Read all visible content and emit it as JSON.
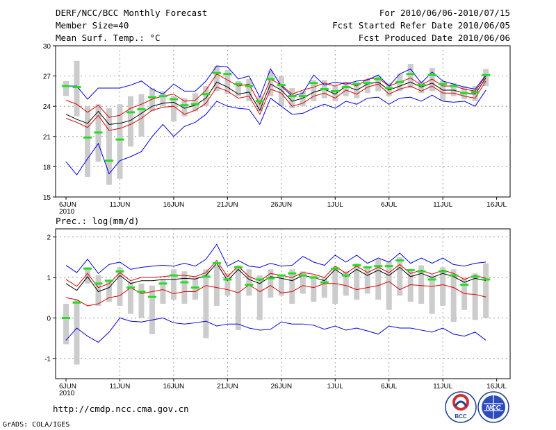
{
  "header": {
    "title": "DERF/NCC/BCC Monthly Forecast",
    "member_size": "Member Size=40",
    "variable": "Mean Surf. Temp.: °C",
    "period": "For 2010/06/06-2010/07/15",
    "refer_date": "Fcst Started Refer Date 2010/06/05",
    "produced_date": "Fcst Produced Date 2010/06/06"
  },
  "footer": {
    "url": "http://cmdp.ncc.cma.gov.cn",
    "credit": "GrADS: COLA/IGES",
    "logo_bcc": "BCC",
    "logo_ncc": "NCC"
  },
  "colors": {
    "box": "#cccccc",
    "obs": "#22dd22",
    "mean": "#000000",
    "spread": "#dd0000",
    "range": "#0000dd",
    "grid": "#888888"
  },
  "chart_data": [
    {
      "type": "line",
      "title": "Mean Surf. Temp.: °C",
      "x_tick_labels": [
        "6JUN\n2010",
        "11JUN",
        "16JUN",
        "21JUN",
        "26JUN",
        "1JUL",
        "6JUL",
        "11JUL",
        "16JUL"
      ],
      "x_tick_days": [
        0,
        5,
        10,
        15,
        20,
        25,
        30,
        35,
        40
      ],
      "ylim": [
        15,
        30
      ],
      "yticks": [
        15,
        18,
        21,
        24,
        27,
        30
      ],
      "grid": true,
      "days": [
        0,
        1,
        2,
        3,
        4,
        5,
        6,
        7,
        8,
        9,
        10,
        11,
        12,
        13,
        14,
        15,
        16,
        17,
        18,
        19,
        20,
        21,
        22,
        23,
        24,
        25,
        26,
        27,
        28,
        29,
        30,
        31,
        32,
        33,
        34,
        35,
        36,
        37,
        38,
        39
      ],
      "series": [
        {
          "name": "max",
          "values": [
            18.5,
            17.2,
            18.8,
            20.3,
            17.3,
            18.6,
            19.0,
            19.5,
            21.0,
            22.2,
            21.0,
            22.0,
            22.4,
            23.2,
            24.5,
            24.0,
            23.8,
            23.7,
            22.2,
            24.8,
            24.0,
            23.2,
            23.3,
            23.8,
            24.2,
            23.8,
            24.5,
            24.2,
            24.8,
            24.9,
            24.2,
            24.8,
            24.9,
            24.5,
            25.1,
            24.5,
            24.4,
            24.5,
            24.0,
            25.6
          ]
        },
        {
          "name": "spread_low",
          "values": [
            22.8,
            22.4,
            21.9,
            23.1,
            21.6,
            21.8,
            22.2,
            22.8,
            23.6,
            23.9,
            24.0,
            23.2,
            23.6,
            24.3,
            25.9,
            25.5,
            24.8,
            25.0,
            23.2,
            25.7,
            25.3,
            24.0,
            24.3,
            25.0,
            25.3,
            24.8,
            25.6,
            25.2,
            25.9,
            26.2,
            25.2,
            25.7,
            26.0,
            25.5,
            26.0,
            25.3,
            25.3,
            25.0,
            24.8,
            26.5
          ]
        },
        {
          "name": "mean",
          "values": [
            23.2,
            22.7,
            22.3,
            23.5,
            22.2,
            22.3,
            22.6,
            23.3,
            24.0,
            24.3,
            24.4,
            23.8,
            24.1,
            24.8,
            26.4,
            25.9,
            25.2,
            25.4,
            23.6,
            26.2,
            25.6,
            24.5,
            24.8,
            25.4,
            25.7,
            25.2,
            26.0,
            25.6,
            26.2,
            26.4,
            25.6,
            26.0,
            26.4,
            25.9,
            26.3,
            25.6,
            25.6,
            25.3,
            25.2,
            26.8
          ]
        },
        {
          "name": "spread_high",
          "values": [
            24.6,
            24.2,
            23.4,
            24.1,
            22.9,
            23.1,
            23.8,
            24.2,
            24.7,
            25.0,
            25.2,
            24.5,
            24.6,
            25.6,
            27.2,
            26.6,
            26.0,
            26.2,
            24.2,
            26.7,
            26.1,
            25.2,
            25.6,
            25.9,
            26.3,
            26.0,
            26.4,
            26.0,
            26.7,
            26.8,
            26.0,
            26.4,
            26.8,
            26.1,
            26.7,
            26.0,
            26.0,
            25.7,
            25.5,
            27.0
          ]
        },
        {
          "name": "min",
          "values": [
            26.0,
            26.0,
            24.7,
            25.8,
            25.8,
            25.8,
            26.1,
            26.5,
            25.7,
            25.2,
            26.2,
            25.5,
            25.5,
            26.5,
            28.0,
            27.9,
            26.7,
            27.0,
            24.9,
            27.7,
            26.0,
            25.0,
            25.3,
            27.1,
            26.1,
            26.4,
            26.2,
            26.5,
            26.6,
            27.1,
            26.0,
            27.2,
            27.7,
            26.3,
            27.4,
            26.5,
            26.2,
            25.9,
            25.7,
            27.1
          ]
        }
      ],
      "boxes": [
        {
          "low": 25.0,
          "high": 26.5
        },
        {
          "low": 23.0,
          "high": 28.5
        },
        {
          "low": 17.0,
          "high": 24.0
        },
        {
          "low": 18.5,
          "high": 24.2
        },
        {
          "low": 16.2,
          "high": 23.8
        },
        {
          "low": 16.8,
          "high": 24.2
        },
        {
          "low": 20.0,
          "high": 25.0
        },
        {
          "low": 21.0,
          "high": 25.2
        },
        {
          "low": 23.5,
          "high": 25.8
        },
        {
          "low": 24.0,
          "high": 25.5
        },
        {
          "low": 22.5,
          "high": 25.0
        },
        {
          "low": 23.0,
          "high": 24.8
        },
        {
          "low": 23.5,
          "high": 25.3
        },
        {
          "low": 24.0,
          "high": 26.0
        },
        {
          "low": 25.5,
          "high": 28.0
        },
        {
          "low": 25.2,
          "high": 27.6
        },
        {
          "low": 25.0,
          "high": 26.5
        },
        {
          "low": 24.5,
          "high": 26.7
        },
        {
          "low": 23.5,
          "high": 25.0
        },
        {
          "low": 25.0,
          "high": 27.5
        },
        {
          "low": 24.0,
          "high": 27.0
        },
        {
          "low": 23.8,
          "high": 25.8
        },
        {
          "low": 24.0,
          "high": 25.5
        },
        {
          "low": 24.5,
          "high": 26.6
        },
        {
          "low": 24.8,
          "high": 26.6
        },
        {
          "low": 24.5,
          "high": 26.0
        },
        {
          "low": 25.0,
          "high": 26.3
        },
        {
          "low": 24.8,
          "high": 26.4
        },
        {
          "low": 25.3,
          "high": 26.7
        },
        {
          "low": 25.5,
          "high": 27.0
        },
        {
          "low": 25.0,
          "high": 26.3
        },
        {
          "low": 25.5,
          "high": 27.2
        },
        {
          "low": 25.8,
          "high": 28.2
        },
        {
          "low": 25.3,
          "high": 26.5
        },
        {
          "low": 25.5,
          "high": 27.8
        },
        {
          "low": 24.5,
          "high": 26.5
        },
        {
          "low": 25.0,
          "high": 26.3
        },
        {
          "low": 24.7,
          "high": 26.0
        },
        {
          "low": 24.5,
          "high": 26.0
        },
        {
          "low": 26.0,
          "high": 27.7
        }
      ],
      "observed": [
        26.0,
        25.9,
        20.9,
        21.4,
        18.6,
        20.7,
        23.4,
        23.7,
        24.9,
        25.0,
        24.7,
        24.1,
        24.2,
        25.2,
        27.3,
        27.2,
        26.2,
        26.0,
        24.5,
        26.7,
        26.1,
        25.0,
        25.0,
        26.3,
        25.7,
        25.5,
        25.9,
        26.2,
        26.3,
        26.7,
        25.8,
        26.4,
        27.2,
        26.1,
        27.1,
        26.2,
        26.0,
        25.3,
        25.4,
        27.1
      ]
    },
    {
      "type": "line",
      "title": "Prec.: log(mm/d)",
      "x_tick_labels": [
        "6JUN\n2010",
        "11JUN",
        "16JUN",
        "21JUN",
        "26JUN",
        "1JUL",
        "6JUL",
        "11JUL",
        "16JUL"
      ],
      "x_tick_days": [
        0,
        5,
        10,
        15,
        20,
        25,
        30,
        35,
        40
      ],
      "ylim": [
        -1.5,
        2.2
      ],
      "yticks": [
        -1,
        0,
        1,
        2
      ],
      "grid": true,
      "days": [
        0,
        1,
        2,
        3,
        4,
        5,
        6,
        7,
        8,
        9,
        10,
        11,
        12,
        13,
        14,
        15,
        16,
        17,
        18,
        19,
        20,
        21,
        22,
        23,
        24,
        25,
        26,
        27,
        28,
        29,
        30,
        31,
        32,
        33,
        34,
        35,
        36,
        37,
        38,
        39
      ],
      "series": [
        {
          "name": "max",
          "values": [
            -0.55,
            -0.25,
            -0.45,
            -0.6,
            -0.35,
            0.0,
            -0.08,
            -0.1,
            -0.05,
            0.0,
            -0.12,
            -0.15,
            -0.12,
            -0.08,
            -0.2,
            -0.15,
            -0.15,
            -0.25,
            -0.3,
            -0.28,
            -0.1,
            -0.15,
            -0.15,
            -0.18,
            -0.28,
            -0.2,
            -0.3,
            -0.25,
            -0.32,
            -0.4,
            -0.2,
            -0.25,
            -0.25,
            -0.3,
            -0.35,
            -0.25,
            -0.4,
            -0.45,
            -0.35,
            -0.55
          ]
        },
        {
          "name": "spread_low",
          "values": [
            0.5,
            0.45,
            0.3,
            0.35,
            0.5,
            0.55,
            0.75,
            0.6,
            0.65,
            0.7,
            0.6,
            0.65,
            0.65,
            0.8,
            0.75,
            0.7,
            0.62,
            0.82,
            0.65,
            0.8,
            0.62,
            0.65,
            0.8,
            0.75,
            0.85,
            0.85,
            0.8,
            0.7,
            0.75,
            0.8,
            0.9,
            0.7,
            0.82,
            0.8,
            0.78,
            0.82,
            0.75,
            0.6,
            0.58,
            0.52
          ]
        },
        {
          "name": "mean",
          "values": [
            0.85,
            0.68,
            1.02,
            0.65,
            0.75,
            1.05,
            0.85,
            0.92,
            0.92,
            0.95,
            0.95,
            0.98,
            0.96,
            1.05,
            1.35,
            0.92,
            1.2,
            0.95,
            0.85,
            1.02,
            0.98,
            0.92,
            1.05,
            1.0,
            0.92,
            1.2,
            1.02,
            1.2,
            1.05,
            1.18,
            1.05,
            1.25,
            1.02,
            1.1,
            1.0,
            1.1,
            1.02,
            0.88,
            0.98,
            0.92
          ]
        },
        {
          "name": "spread_high",
          "values": [
            0.95,
            0.78,
            1.1,
            0.75,
            0.85,
            1.12,
            0.92,
            1.0,
            1.0,
            1.02,
            1.05,
            1.05,
            1.02,
            1.12,
            1.42,
            1.02,
            1.28,
            1.02,
            0.92,
            1.1,
            1.05,
            1.0,
            1.12,
            1.08,
            1.0,
            1.28,
            1.1,
            1.28,
            1.12,
            1.25,
            1.12,
            1.32,
            1.1,
            1.18,
            1.08,
            1.18,
            1.1,
            0.95,
            1.05,
            0.98
          ]
        },
        {
          "name": "min",
          "values": [
            1.3,
            1.12,
            1.45,
            1.1,
            1.32,
            1.38,
            1.2,
            1.25,
            1.28,
            1.3,
            1.28,
            1.35,
            1.28,
            1.45,
            1.82,
            1.28,
            1.42,
            1.28,
            1.25,
            1.35,
            1.28,
            1.3,
            1.52,
            1.38,
            1.3,
            1.55,
            1.38,
            1.55,
            1.35,
            1.48,
            1.38,
            1.6,
            1.35,
            1.48,
            1.35,
            1.48,
            1.32,
            1.28,
            1.35,
            1.38
          ]
        }
      ],
      "boxes": [
        {
          "low": -0.65,
          "high": 0.35
        },
        {
          "low": -1.15,
          "high": 0.45
        },
        {
          "low": 0.85,
          "high": 1.25
        },
        {
          "low": 0.3,
          "high": 1.05
        },
        {
          "low": 0.4,
          "high": 0.9
        },
        {
          "low": 0.3,
          "high": 1.25
        },
        {
          "low": 0.1,
          "high": 0.9
        },
        {
          "low": 0.0,
          "high": 0.85
        },
        {
          "low": -0.4,
          "high": 0.8
        },
        {
          "low": 0.35,
          "high": 0.95
        },
        {
          "low": 0.45,
          "high": 1.2
        },
        {
          "low": 0.35,
          "high": 1.15
        },
        {
          "low": 0.45,
          "high": 1.0
        },
        {
          "low": -0.5,
          "high": 1.2
        },
        {
          "low": 0.3,
          "high": 1.3
        },
        {
          "low": 0.55,
          "high": 1.1
        },
        {
          "low": -0.3,
          "high": 1.3
        },
        {
          "low": 0.55,
          "high": 1.2
        },
        {
          "low": -0.05,
          "high": 1.05
        },
        {
          "low": 0.5,
          "high": 1.2
        },
        {
          "low": 0.55,
          "high": 1.05
        },
        {
          "low": 0.35,
          "high": 1.2
        },
        {
          "low": 0.6,
          "high": 1.15
        },
        {
          "low": 0.4,
          "high": 1.05
        },
        {
          "low": 0.5,
          "high": 1.0
        },
        {
          "low": 0.35,
          "high": 1.25
        },
        {
          "low": 0.55,
          "high": 1.15
        },
        {
          "low": 0.45,
          "high": 1.35
        },
        {
          "low": 0.6,
          "high": 1.25
        },
        {
          "low": 0.45,
          "high": 1.45
        },
        {
          "low": 0.2,
          "high": 1.4
        },
        {
          "low": 0.55,
          "high": 1.5
        },
        {
          "low": 0.4,
          "high": 1.2
        },
        {
          "low": 0.35,
          "high": 1.3
        },
        {
          "low": 0.1,
          "high": 1.05
        },
        {
          "low": 0.3,
          "high": 1.25
        },
        {
          "low": -0.1,
          "high": 1.2
        },
        {
          "low": 0.2,
          "high": 1.0
        },
        {
          "low": -0.05,
          "high": 1.1
        },
        {
          "low": 0.0,
          "high": 1.35
        }
      ],
      "observed": [
        0.0,
        0.38,
        1.22,
        0.85,
        0.92,
        1.15,
        0.75,
        0.65,
        0.52,
        0.85,
        1.05,
        0.88,
        0.75,
        1.02,
        1.35,
        0.95,
        1.25,
        0.82,
        0.95,
        0.98,
        1.05,
        1.1,
        1.05,
        1.0,
        0.88,
        1.22,
        1.05,
        1.3,
        1.25,
        1.28,
        1.28,
        1.42,
        1.18,
        1.15,
        0.95,
        1.15,
        1.05,
        0.82,
        1.02,
        0.95
      ]
    }
  ]
}
